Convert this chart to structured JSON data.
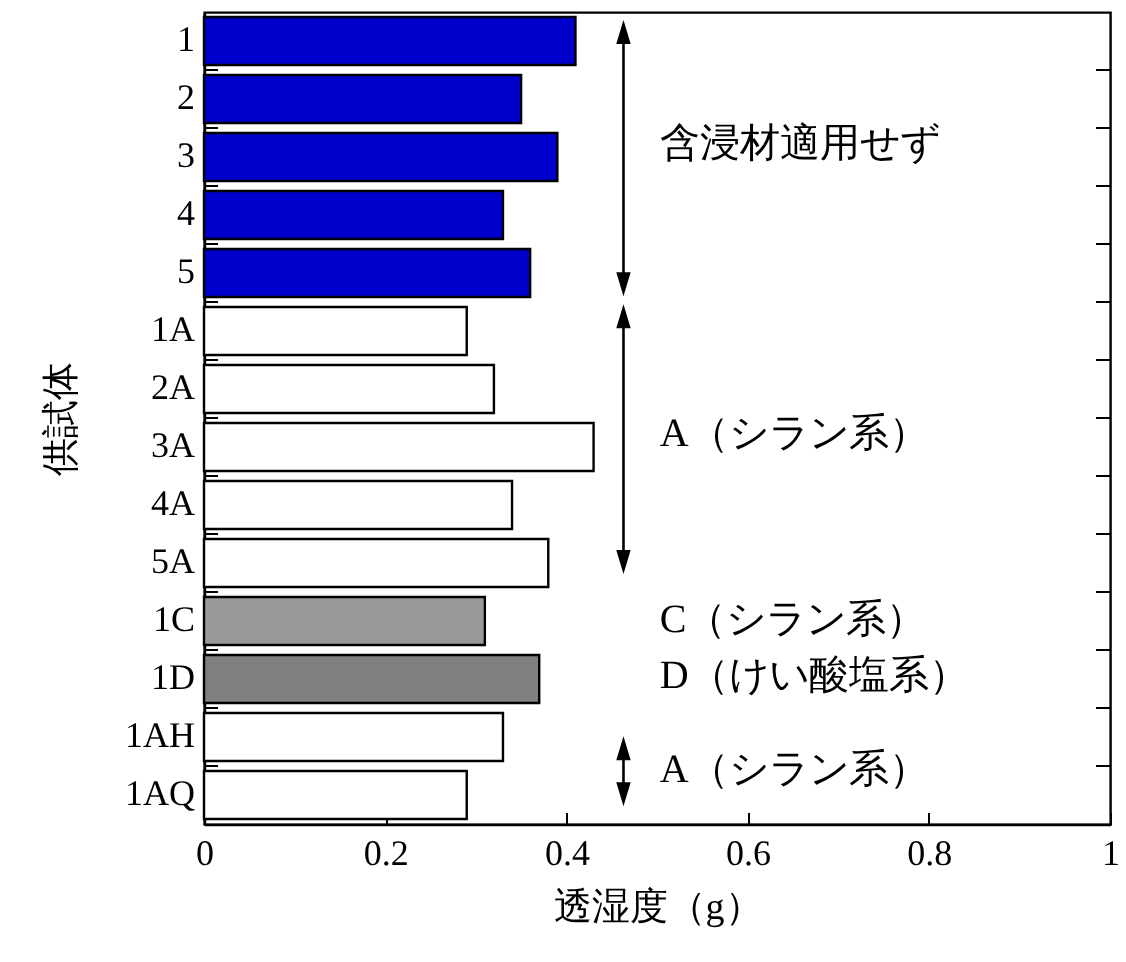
{
  "chart_data": {
    "type": "bar",
    "orientation": "horizontal",
    "xlabel": "透湿度（g）",
    "ylabel": "供試体",
    "categories": [
      "1",
      "2",
      "3",
      "4",
      "5",
      "1A",
      "2A",
      "3A",
      "4A",
      "5A",
      "1C",
      "1D",
      "1AH",
      "1AQ"
    ],
    "values": [
      0.41,
      0.35,
      0.39,
      0.33,
      0.36,
      0.29,
      0.32,
      0.43,
      0.34,
      0.38,
      0.31,
      0.37,
      0.33,
      0.29
    ],
    "colors": [
      "#0000cc",
      "#0000cc",
      "#0000cc",
      "#0000cc",
      "#0000cc",
      "#ffffff",
      "#ffffff",
      "#ffffff",
      "#ffffff",
      "#ffffff",
      "#999999",
      "#7f7f7f",
      "#ffffff",
      "#ffffff"
    ],
    "xlim": [
      0,
      1
    ],
    "xticks": [
      0,
      0.2,
      0.4,
      0.6,
      0.8,
      1
    ],
    "annotations": [
      "含浸材適用せず",
      "A（シラン系）",
      "C（シラン系）",
      "D（けい酸塩系）",
      "A（シラン系）"
    ]
  }
}
